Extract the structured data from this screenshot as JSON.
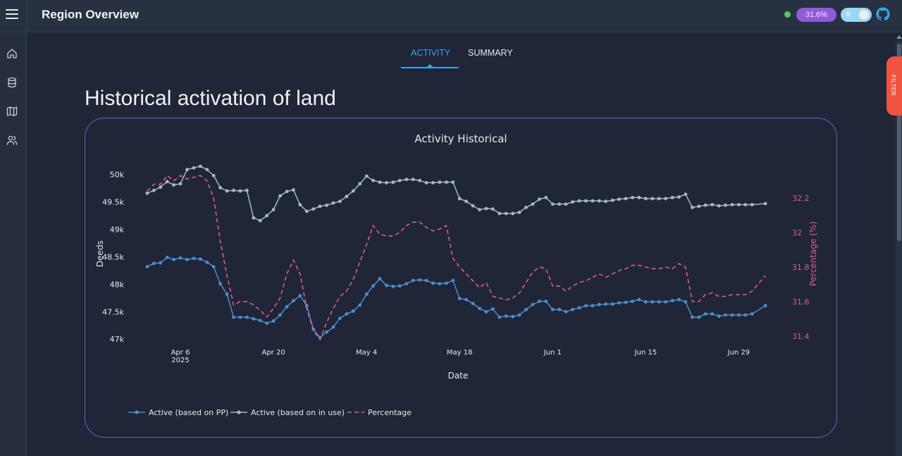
{
  "app": {
    "title": "Region Overview"
  },
  "header": {
    "status_badge": "31.6%",
    "status_dot_color": "#4cc96a",
    "badge_color": "#8f5bd8",
    "theme_toggle_icon": "sun-icon",
    "github_icon": "github-icon"
  },
  "sidebar": {
    "items": [
      {
        "icon": "home-icon"
      },
      {
        "icon": "database-icon"
      },
      {
        "icon": "map-icon"
      },
      {
        "icon": "users-icon"
      }
    ]
  },
  "tabs": [
    {
      "label": "ACTIVITY",
      "active": true
    },
    {
      "label": "SUMMARY",
      "active": false
    }
  ],
  "page": {
    "title": "Historical activation of land"
  },
  "filter": {
    "label": "FILTER"
  },
  "chart_data": {
    "type": "line",
    "title": "Activity Historical",
    "xlabel": "Date",
    "ylabel": "Deeds",
    "y2label": "Percentage (%)",
    "x_tick_labels": [
      "Apr 6",
      "Apr 20",
      "May 4",
      "May 18",
      "Jun 1",
      "Jun 15",
      "Jun 29"
    ],
    "x_tick_sublabel": "2025",
    "x_ticks": [
      "2025-04-06",
      "2025-04-20",
      "2025-05-04",
      "2025-05-18",
      "2025-06-01",
      "2025-06-15",
      "2025-06-29"
    ],
    "xlim": [
      "2025-03-30",
      "2025-07-05"
    ],
    "ylim": [
      46900,
      50200
    ],
    "y_ticks": [
      47000,
      47500,
      48000,
      48500,
      49000,
      49500,
      50000
    ],
    "y_tick_labels": [
      "47k",
      "47.5k",
      "48k",
      "48.5k",
      "49k",
      "49.5k",
      "50k"
    ],
    "y2lim": [
      31.35,
      32.4
    ],
    "y2_ticks": [
      31.4,
      31.6,
      31.8,
      32,
      32.2
    ],
    "y2_tick_labels": [
      "31.4",
      "31.6",
      "31.8",
      "32",
      "32.2"
    ],
    "x": [
      "2025-04-01",
      "2025-04-02",
      "2025-04-03",
      "2025-04-04",
      "2025-04-05",
      "2025-04-06",
      "2025-04-07",
      "2025-04-08",
      "2025-04-09",
      "2025-04-10",
      "2025-04-11",
      "2025-04-12",
      "2025-04-13",
      "2025-04-14",
      "2025-04-15",
      "2025-04-16",
      "2025-04-17",
      "2025-04-18",
      "2025-04-19",
      "2025-04-20",
      "2025-04-21",
      "2025-04-22",
      "2025-04-23",
      "2025-04-24",
      "2025-04-25",
      "2025-04-26",
      "2025-04-27",
      "2025-04-28",
      "2025-04-29",
      "2025-04-30",
      "2025-05-01",
      "2025-05-02",
      "2025-05-03",
      "2025-05-04",
      "2025-05-05",
      "2025-05-06",
      "2025-05-07",
      "2025-05-08",
      "2025-05-09",
      "2025-05-10",
      "2025-05-11",
      "2025-05-12",
      "2025-05-13",
      "2025-05-14",
      "2025-05-15",
      "2025-05-16",
      "2025-05-17",
      "2025-05-18",
      "2025-05-19",
      "2025-05-20",
      "2025-05-21",
      "2025-05-22",
      "2025-05-23",
      "2025-05-24",
      "2025-05-25",
      "2025-05-26",
      "2025-05-27",
      "2025-05-28",
      "2025-05-29",
      "2025-05-30",
      "2025-05-31",
      "2025-06-01",
      "2025-06-02",
      "2025-06-03",
      "2025-06-04",
      "2025-06-05",
      "2025-06-06",
      "2025-06-07",
      "2025-06-08",
      "2025-06-09",
      "2025-06-10",
      "2025-06-11",
      "2025-06-12",
      "2025-06-13",
      "2025-06-14",
      "2025-06-15",
      "2025-06-16",
      "2025-06-17",
      "2025-06-18",
      "2025-06-19",
      "2025-06-20",
      "2025-06-21",
      "2025-06-22",
      "2025-06-23",
      "2025-06-24",
      "2025-06-25",
      "2025-06-26",
      "2025-06-27",
      "2025-06-28",
      "2025-06-29",
      "2025-06-30",
      "2025-07-01",
      "2025-07-03"
    ],
    "series": [
      {
        "name": "Active (based on PP)",
        "axis": "y",
        "color": "#4f8ccc",
        "style": "line+markers",
        "values": [
          48320,
          48380,
          48390,
          48490,
          48450,
          48480,
          48450,
          48470,
          48460,
          48400,
          48320,
          48010,
          47820,
          47400,
          47400,
          47400,
          47370,
          47340,
          47290,
          47330,
          47440,
          47590,
          47700,
          47790,
          47610,
          47180,
          47030,
          47130,
          47220,
          47380,
          47460,
          47510,
          47620,
          47820,
          47970,
          48100,
          47980,
          47960,
          47970,
          48010,
          48070,
          48080,
          48070,
          48020,
          48010,
          48020,
          48070,
          47740,
          47720,
          47650,
          47560,
          47500,
          47550,
          47400,
          47420,
          47410,
          47440,
          47540,
          47630,
          47690,
          47690,
          47540,
          47540,
          47500,
          47540,
          47570,
          47610,
          47610,
          47630,
          47640,
          47640,
          47660,
          47670,
          47690,
          47720,
          47680,
          47680,
          47680,
          47680,
          47700,
          47720,
          47680,
          47400,
          47400,
          47460,
          47460,
          47420,
          47440,
          47440,
          47440,
          47440,
          47460,
          47610
        ]
      },
      {
        "name": "Active (based on in use)",
        "axis": "y",
        "color": "#a9b6c8",
        "style": "line+markers",
        "values": [
          49660,
          49710,
          49770,
          49870,
          49810,
          49830,
          50090,
          50120,
          50150,
          50090,
          49980,
          49760,
          49700,
          49710,
          49700,
          49710,
          49210,
          49160,
          49250,
          49360,
          49610,
          49690,
          49720,
          49450,
          49330,
          49370,
          49420,
          49440,
          49480,
          49510,
          49600,
          49700,
          49830,
          49970,
          49890,
          49860,
          49850,
          49860,
          49890,
          49910,
          49910,
          49890,
          49850,
          49850,
          49860,
          49860,
          49860,
          49560,
          49510,
          49430,
          49360,
          49380,
          49370,
          49290,
          49290,
          49290,
          49310,
          49400,
          49460,
          49550,
          49580,
          49460,
          49460,
          49460,
          49500,
          49520,
          49520,
          49520,
          49520,
          49510,
          49530,
          49550,
          49560,
          49580,
          49580,
          49560,
          49560,
          49560,
          49560,
          49580,
          49590,
          49640,
          49400,
          49420,
          49440,
          49450,
          49430,
          49440,
          49450,
          49450,
          49450,
          49450,
          49470
        ]
      },
      {
        "name": "Percentage",
        "axis": "y2",
        "color": "#e0589a",
        "style": "dash",
        "values": [
          32.24,
          32.28,
          32.28,
          32.33,
          32.3,
          32.33,
          32.31,
          32.32,
          32.33,
          32.3,
          32.2,
          31.95,
          31.75,
          31.58,
          31.6,
          31.6,
          31.58,
          31.55,
          31.51,
          31.56,
          31.62,
          31.76,
          31.84,
          31.76,
          31.56,
          31.43,
          31.38,
          31.48,
          31.56,
          31.63,
          31.66,
          31.73,
          31.83,
          31.93,
          32.04,
          31.99,
          31.98,
          31.98,
          32,
          32.04,
          32.06,
          32.06,
          32.03,
          32.01,
          32.02,
          32.04,
          31.85,
          31.8,
          31.76,
          31.72,
          31.68,
          31.71,
          31.63,
          31.62,
          31.61,
          31.62,
          31.65,
          31.71,
          31.77,
          31.8,
          31.79,
          31.69,
          31.69,
          31.66,
          31.69,
          31.71,
          31.72,
          31.74,
          31.76,
          31.74,
          31.76,
          31.78,
          31.79,
          31.81,
          31.81,
          31.8,
          31.79,
          31.79,
          31.8,
          31.79,
          31.82,
          31.8,
          31.6,
          31.6,
          31.64,
          31.65,
          31.63,
          31.63,
          31.64,
          31.64,
          31.64,
          31.66,
          31.75
        ]
      }
    ],
    "legend": "bottom-left",
    "grid": false
  }
}
